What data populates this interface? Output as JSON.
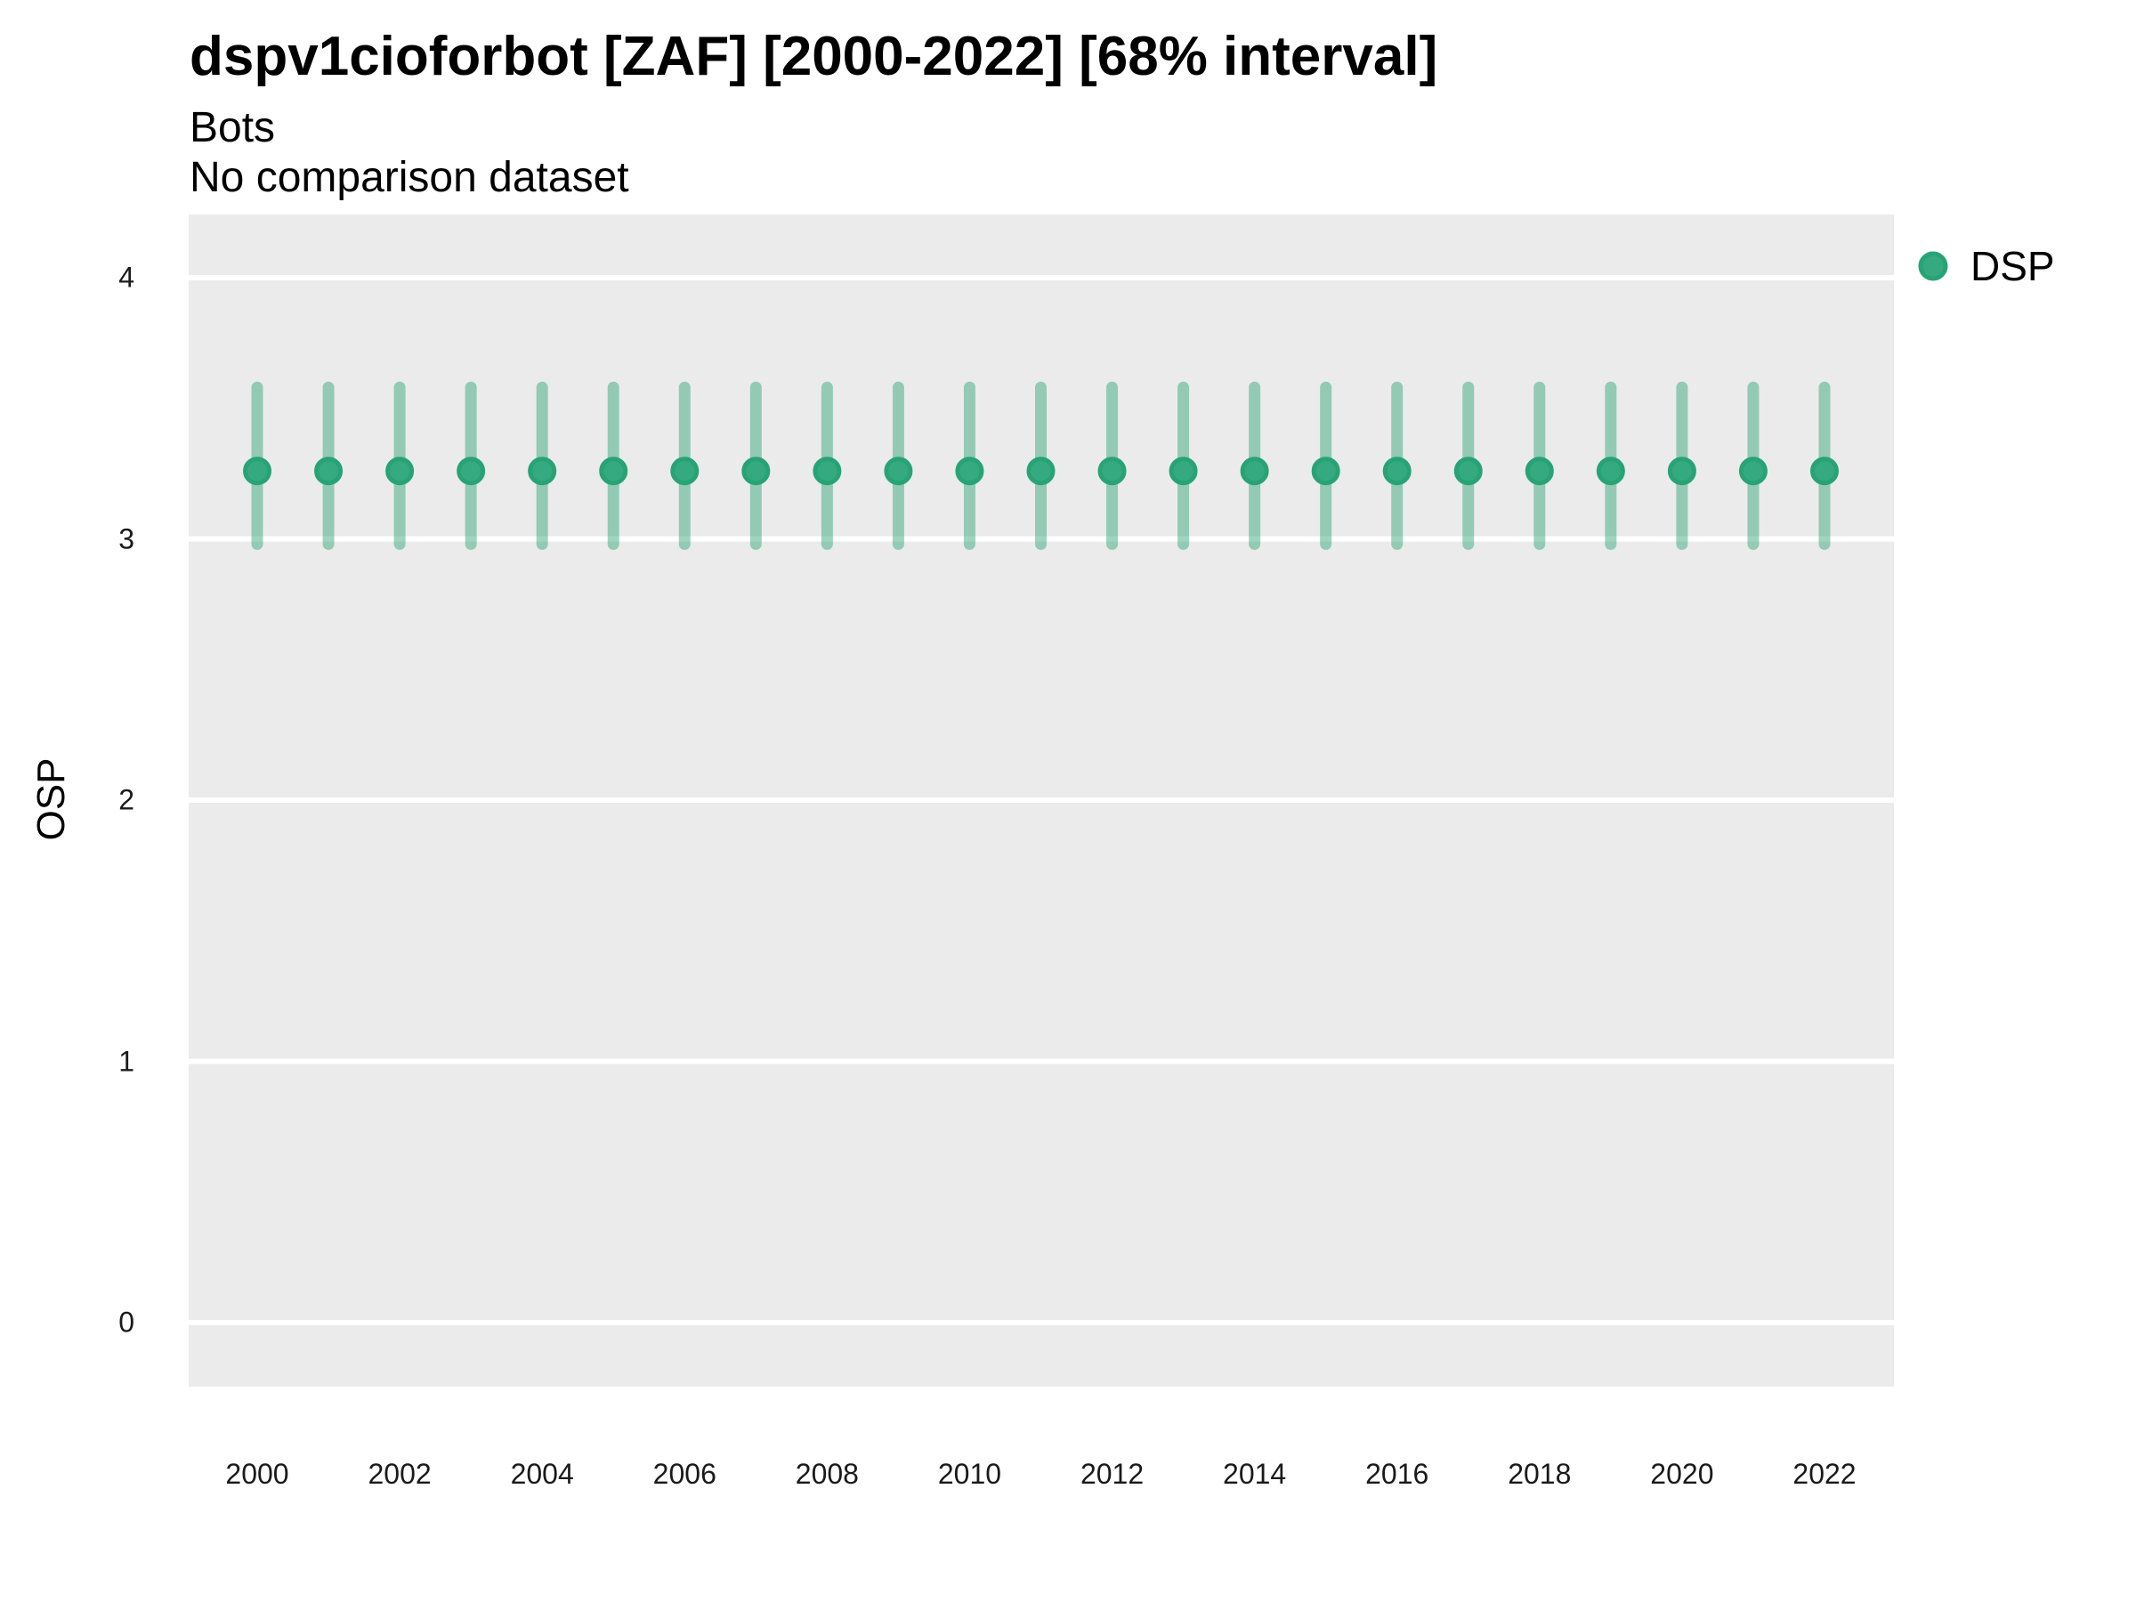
{
  "header": {
    "title": "dspv1cioforbot [ZAF] [2000-2022] [68% interval]",
    "subtitle": "Bots",
    "comparison_note": "No comparison dataset"
  },
  "legend": {
    "position": "right",
    "items": [
      {
        "label": "DSP",
        "marker": "circle-icon"
      }
    ]
  },
  "colors": {
    "panel_background": "#ebebeb",
    "gridline": "#ffffff",
    "point_fill": "#35aa81",
    "point_stroke": "#27a376",
    "interval_bar": "#28a173",
    "interval_bar_opacity": 0.45,
    "text": "#000000"
  },
  "chart_data": {
    "type": "scatter",
    "title": "dspv1cioforbot [ZAF] [2000-2022] [68% interval]",
    "subtitle": "Bots",
    "caption": "No comparison dataset",
    "xlabel": "",
    "ylabel": "OSP",
    "ylim": [
      0,
      4
    ],
    "y_ticks": [
      0,
      1,
      2,
      3,
      4
    ],
    "x_tick_labels": [
      2000,
      2002,
      2004,
      2006,
      2008,
      2010,
      2012,
      2014,
      2016,
      2018,
      2020,
      2022
    ],
    "grid": "major-horizontal",
    "legend_position": "right",
    "interval_label": "68% interval",
    "x": [
      2000,
      2001,
      2002,
      2003,
      2004,
      2005,
      2006,
      2007,
      2008,
      2009,
      2010,
      2011,
      2012,
      2013,
      2014,
      2015,
      2016,
      2017,
      2018,
      2019,
      2020,
      2021,
      2022
    ],
    "series": [
      {
        "name": "DSP",
        "values": [
          3.26,
          3.26,
          3.26,
          3.26,
          3.26,
          3.26,
          3.26,
          3.26,
          3.26,
          3.26,
          3.26,
          3.26,
          3.26,
          3.26,
          3.26,
          3.26,
          3.26,
          3.26,
          3.26,
          3.26,
          3.26,
          3.26,
          3.26
        ],
        "lower_68": [
          2.98,
          2.98,
          2.98,
          2.98,
          2.98,
          2.98,
          2.98,
          2.98,
          2.98,
          2.98,
          2.98,
          2.98,
          2.98,
          2.98,
          2.98,
          2.98,
          2.98,
          2.98,
          2.98,
          2.98,
          2.98,
          2.98,
          2.98
        ],
        "upper_68": [
          3.58,
          3.58,
          3.58,
          3.58,
          3.58,
          3.58,
          3.58,
          3.58,
          3.58,
          3.58,
          3.58,
          3.58,
          3.58,
          3.58,
          3.58,
          3.58,
          3.58,
          3.58,
          3.58,
          3.58,
          3.58,
          3.58,
          3.58
        ]
      }
    ]
  }
}
